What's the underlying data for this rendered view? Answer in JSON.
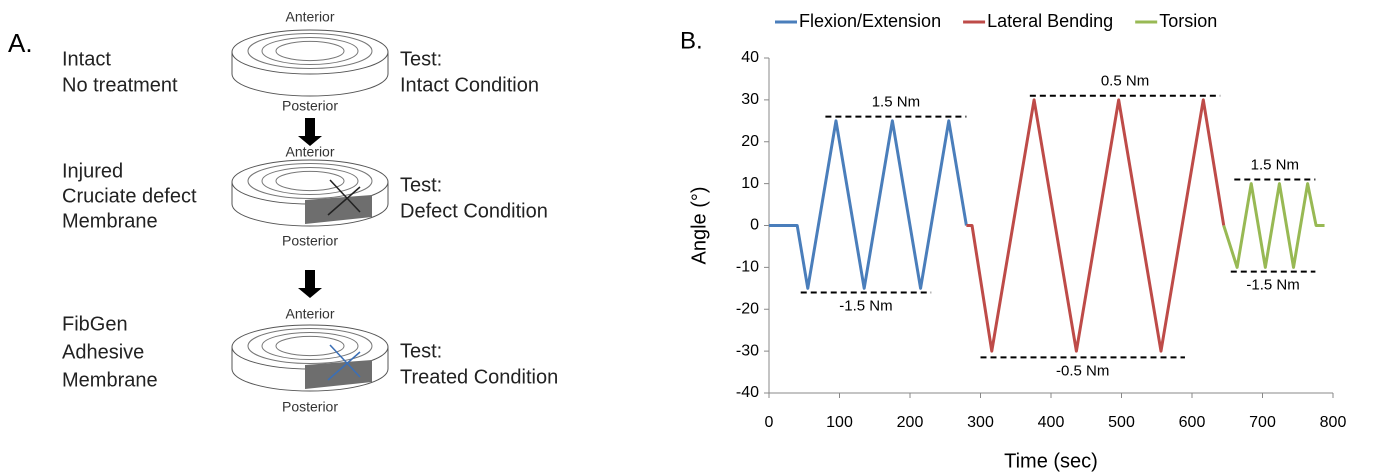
{
  "panel_a": {
    "label": "A.",
    "steps": [
      {
        "condition": [
          "Intact",
          "No treatment"
        ],
        "top": "Anterior",
        "bottom": "Posterior",
        "test": [
          "Test:",
          "Intact Condition"
        ]
      },
      {
        "condition": [
          "Injured",
          "Cruciate defect",
          "Membrane"
        ],
        "top": "Anterior",
        "bottom": "Posterior",
        "test": [
          "Test:",
          "Defect Condition"
        ]
      },
      {
        "condition": [
          "FibGen",
          "Adhesive",
          "Membrane"
        ],
        "top": "Anterior",
        "bottom": "Posterior",
        "test": [
          "Test:",
          "Treated Condition"
        ]
      }
    ]
  },
  "chart_data": {
    "type": "line",
    "panel_label": "B.",
    "x_label": "Time (sec)",
    "y_label": "Angle (°)",
    "xlim": [
      0,
      800
    ],
    "ylim": [
      -40,
      40
    ],
    "xticks": [
      0,
      100,
      200,
      300,
      400,
      500,
      600,
      700,
      800
    ],
    "yticks": [
      -40,
      -30,
      -20,
      -10,
      0,
      10,
      20,
      30,
      40
    ],
    "legend": "top",
    "series": [
      {
        "name": "Flexion/Extension",
        "color": "#4a7ebb",
        "x": [
          0,
          40,
          55,
          95,
          135,
          175,
          215,
          255,
          280
        ],
        "values": [
          0,
          0,
          -15,
          25,
          -15,
          25,
          -15,
          25,
          0
        ]
      },
      {
        "name": "Lateral Bending",
        "color": "#be4b48",
        "x": [
          280,
          288,
          316,
          376,
          436,
          496,
          556,
          616,
          645
        ],
        "values": [
          0,
          0,
          -30,
          30,
          -30,
          30,
          -30,
          30,
          0
        ]
      },
      {
        "name": "Torsion",
        "color": "#98b954",
        "x": [
          645,
          664,
          684,
          704,
          724,
          744,
          764,
          776,
          788
        ],
        "values": [
          0,
          -10,
          10,
          -10,
          10,
          -10,
          10,
          0,
          0
        ]
      }
    ],
    "annotations": [
      {
        "text": "1.5 Nm",
        "y": 26,
        "x": [
          80,
          280
        ],
        "side": "above"
      },
      {
        "text": "-1.5 Nm",
        "y": -16,
        "x": [
          45,
          230
        ],
        "side": "below"
      },
      {
        "text": "0.5 Nm",
        "y": 31,
        "x": [
          370,
          640
        ],
        "side": "above"
      },
      {
        "text": "-0.5 Nm",
        "y": -31.5,
        "x": [
          300,
          590
        ],
        "side": "below"
      },
      {
        "text": "1.5 Nm",
        "y": 11,
        "x": [
          660,
          775
        ],
        "side": "above"
      },
      {
        "text": "-1.5 Nm",
        "y": -11,
        "x": [
          655,
          775
        ],
        "side": "below"
      }
    ]
  }
}
